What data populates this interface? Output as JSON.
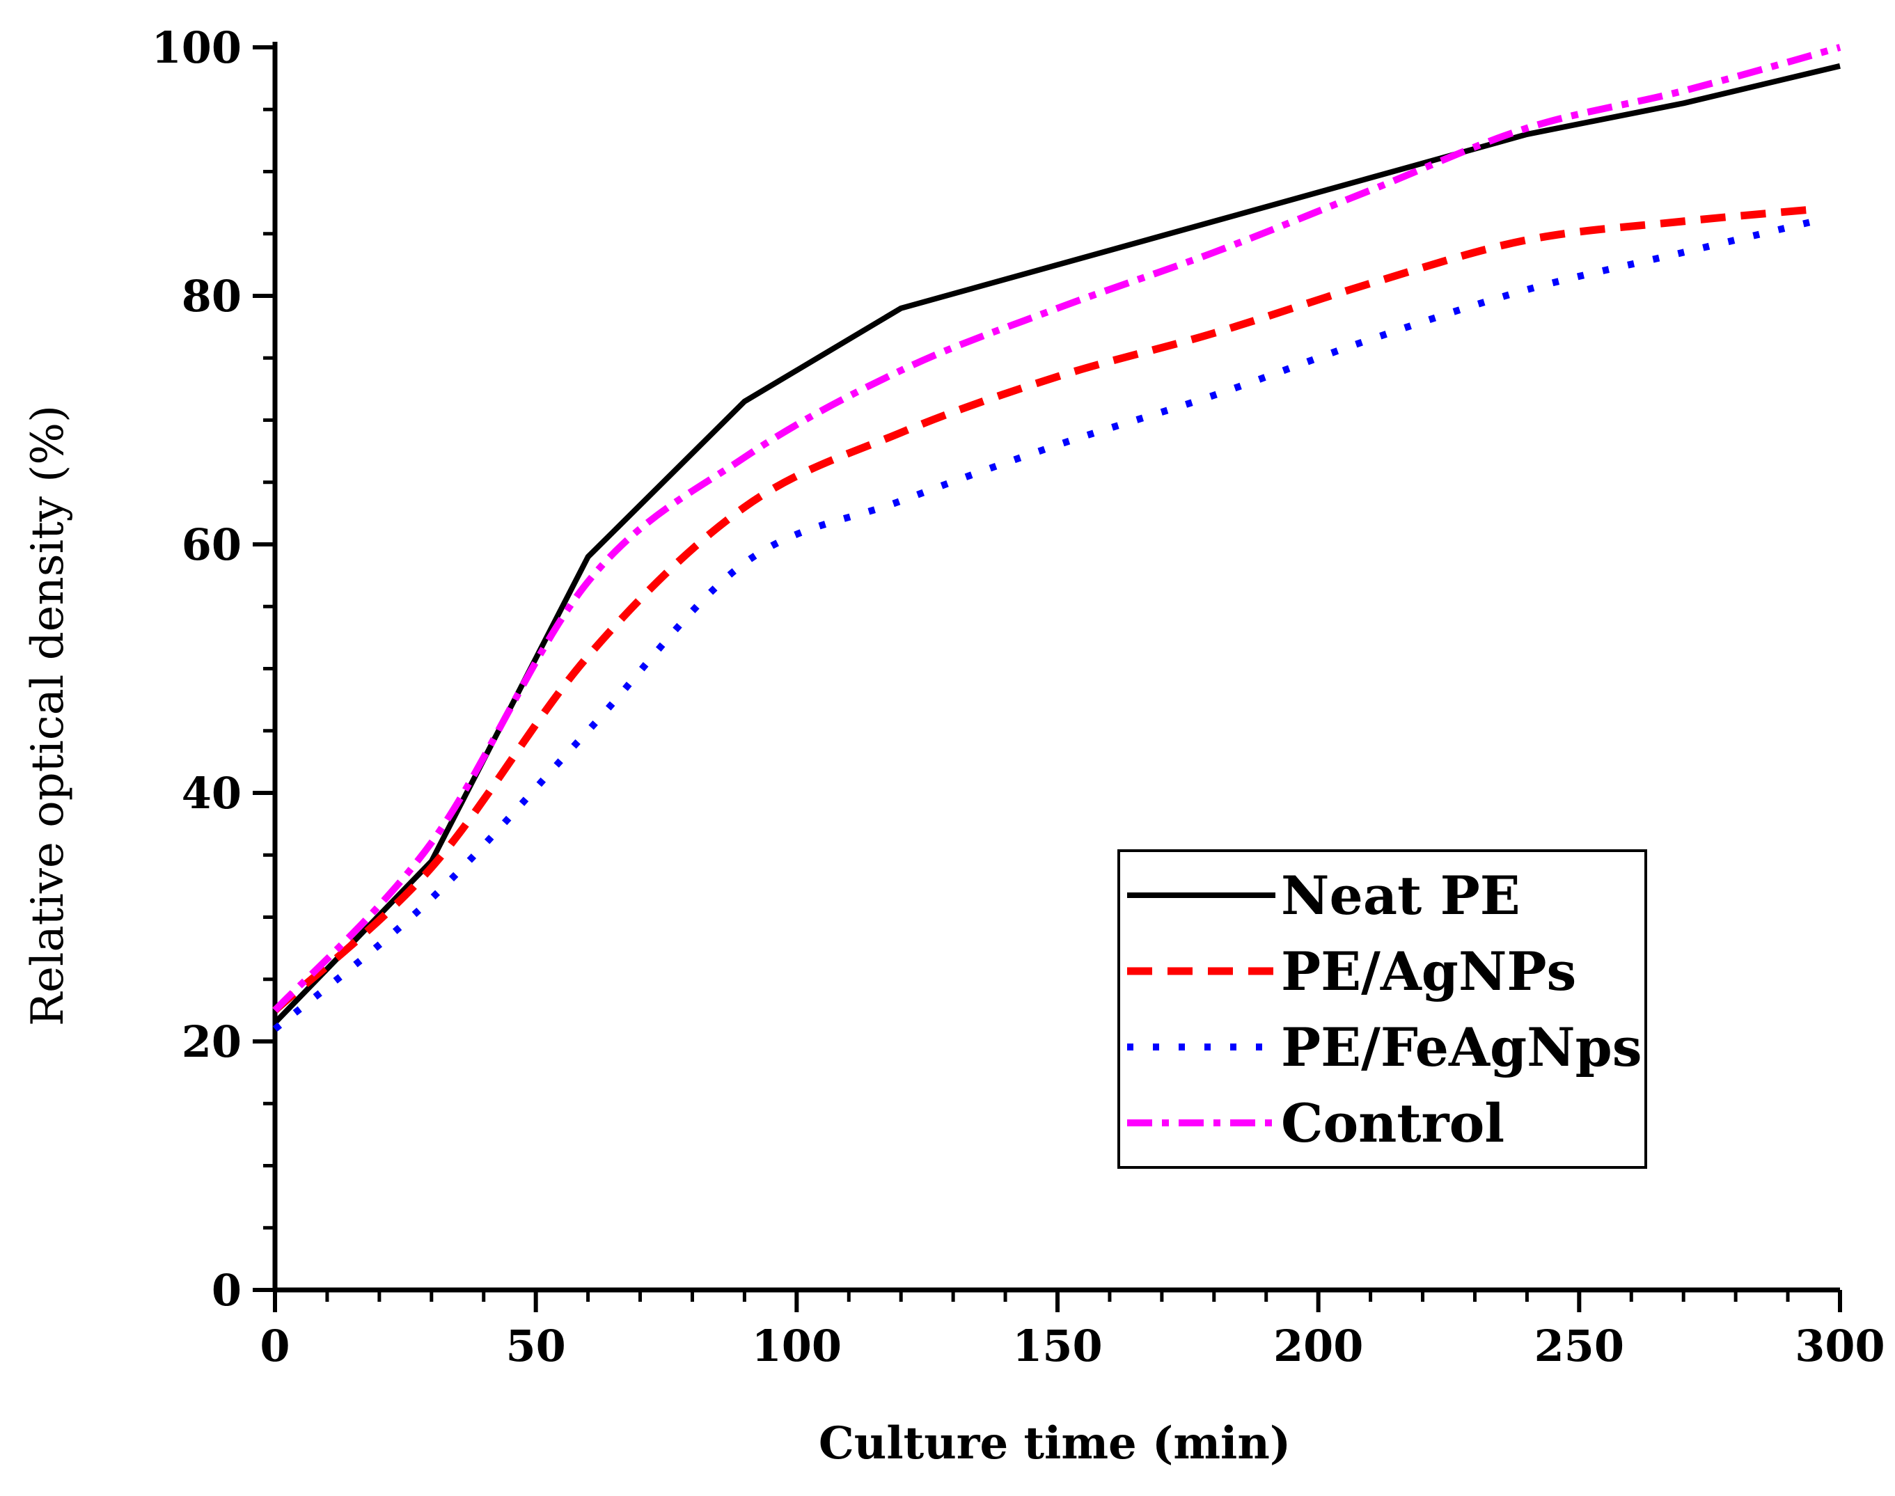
{
  "chart_data": {
    "type": "line",
    "title": "",
    "xlabel": "Culture time (min)",
    "ylabel": "Relative optical density (%)",
    "xlim": [
      0,
      300
    ],
    "ylim": [
      0,
      100
    ],
    "x_ticks": [
      0,
      50,
      100,
      150,
      200,
      250,
      300
    ],
    "y_ticks": [
      0,
      20,
      40,
      60,
      80,
      100
    ],
    "x_tick_labels": [
      "0",
      "50",
      "100",
      "150",
      "200",
      "250",
      "300"
    ],
    "y_tick_labels": [
      "0",
      "20",
      "40",
      "60",
      "80",
      "100"
    ],
    "x_minor_step": 10,
    "y_minor_step": 5,
    "grid": false,
    "legend_position": "bottom-right",
    "series": [
      {
        "name": "Neat PE",
        "color": "#000000",
        "style": "solid",
        "x": [
          0,
          30,
          60,
          90,
          120,
          150,
          180,
          210,
          240,
          270,
          300
        ],
        "y": [
          21.5,
          34.5,
          59,
          71.5,
          79,
          82.5,
          86,
          89.5,
          93,
          95.5,
          98.5
        ]
      },
      {
        "name": "PE/AgNPs",
        "color": "#ff0000",
        "style": "dash",
        "x": [
          0,
          30,
          60,
          90,
          120,
          150,
          180,
          210,
          240,
          270,
          296
        ],
        "y": [
          22.5,
          34,
          51,
          63,
          69,
          73.5,
          77,
          81,
          84.5,
          86,
          87
        ]
      },
      {
        "name": "PE/FeAgNps",
        "color": "#0000ff",
        "style": "dot",
        "x": [
          0,
          30,
          60,
          90,
          120,
          150,
          180,
          210,
          240,
          270,
          295
        ],
        "y": [
          21,
          31.5,
          45,
          58.5,
          63.5,
          68,
          72,
          76.5,
          80.5,
          83.5,
          86
        ]
      },
      {
        "name": "Control",
        "color": "#ff00ff",
        "style": "dashdot",
        "x": [
          0,
          30,
          60,
          90,
          120,
          150,
          180,
          210,
          240,
          270,
          300
        ],
        "y": [
          22.5,
          36,
          57,
          67,
          74,
          79,
          83.5,
          88.5,
          93.5,
          96.5,
          100
        ]
      }
    ]
  }
}
